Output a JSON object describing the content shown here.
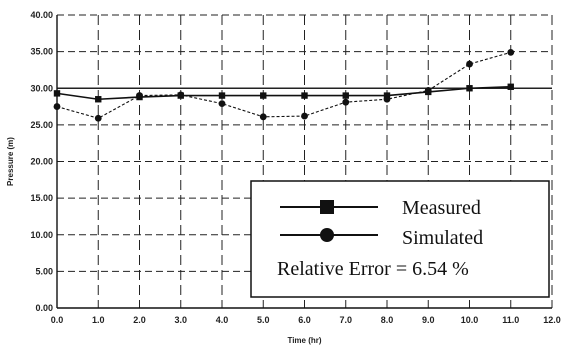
{
  "chart_data": {
    "type": "line",
    "title": "",
    "xlabel": "Time (hr)",
    "ylabel": "Pressure (m)",
    "xlim": [
      0,
      12
    ],
    "ylim": [
      0,
      40
    ],
    "x_ticks": [
      "0.0",
      "1.0",
      "2.0",
      "3.0",
      "4.0",
      "5.0",
      "6.0",
      "7.0",
      "8.0",
      "9.0",
      "10.0",
      "11.0",
      "12.0"
    ],
    "y_ticks": [
      "0.00",
      "5.00",
      "10.00",
      "15.00",
      "20.00",
      "25.00",
      "30.00",
      "35.00",
      "40.00"
    ],
    "grid": true,
    "x": [
      0,
      1,
      2,
      3,
      4,
      5,
      6,
      7,
      8,
      9,
      10,
      11
    ],
    "series": [
      {
        "name": "Measured",
        "marker": "square",
        "values": [
          29.3,
          28.5,
          28.8,
          29.0,
          29.0,
          29.0,
          29.0,
          29.0,
          29.0,
          29.5,
          30.0,
          30.2
        ]
      },
      {
        "name": "Simulated",
        "marker": "circle",
        "values": [
          27.5,
          25.9,
          29.0,
          29.1,
          27.9,
          26.1,
          26.2,
          28.1,
          28.5,
          29.7,
          33.3,
          34.9
        ]
      }
    ],
    "legend_position": "bottom-right",
    "annotation": "Relative Error = 6.54 %",
    "colors": {
      "line": "#111111",
      "grid": "#222222",
      "background": "#ffffff"
    }
  }
}
